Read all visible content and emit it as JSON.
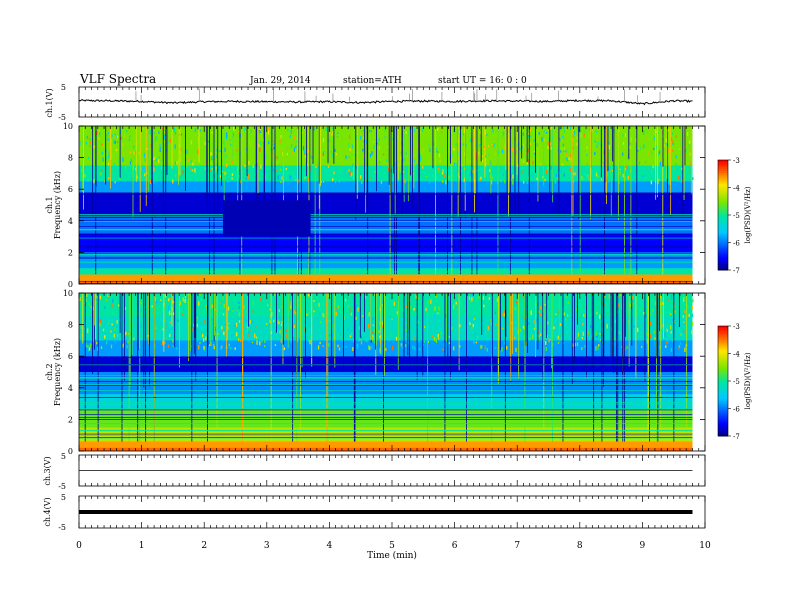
{
  "header": {
    "title": "VLF Spectra",
    "date": "Jan. 29, 2014",
    "station": "station=ATH",
    "start": "start UT =  16: 0 : 0"
  },
  "colorbar": {
    "label": "log(PSD)(V²/Hz)",
    "ticks": [
      "-3",
      "-4",
      "-5",
      "-6",
      "-7"
    ]
  },
  "colors": {
    "low": "#000080",
    "mid": "#00c8c8",
    "high": "#ff0000"
  },
  "chart_data": [
    {
      "type": "line",
      "id": "ch1-waveform",
      "ylabel": "ch.1(V)",
      "ylim": [
        -5,
        5
      ],
      "yticks": [
        "5",
        "-5"
      ],
      "x": [
        0,
        0.5,
        1,
        1.5,
        2,
        2.5,
        3,
        3.5,
        4,
        4.5,
        5,
        5.5,
        6,
        6.5,
        7,
        7.5,
        8,
        8.5,
        9,
        9.5,
        9.8
      ],
      "y": [
        0.5,
        0.4,
        0.2,
        -0.3,
        0.1,
        0.2,
        0.1,
        0.0,
        0.1,
        -0.2,
        0.2,
        0.3,
        0.2,
        0.4,
        0.3,
        0.2,
        0.5,
        0.4,
        -0.6,
        0.4,
        0.2
      ]
    },
    {
      "type": "heatmap",
      "id": "ch1-spectrogram",
      "ylabel": "ch.1\nFrequency (kHz)",
      "ylabel_lines": [
        "ch.1",
        "Frequency (kHz)"
      ],
      "ylim": [
        0,
        10
      ],
      "yticks": [
        "0",
        "2",
        "4",
        "6",
        "8",
        "10"
      ],
      "xlim": [
        0,
        10
      ],
      "data_end_min": 9.8,
      "value_range": [
        -7,
        -3
      ],
      "low_band_start_min": 2.3,
      "low_band_end_min": 3.7
    },
    {
      "type": "heatmap",
      "id": "ch2-spectrogram",
      "ylabel": "ch.2\nFrequency (kHz)",
      "ylabel_lines": [
        "ch.2",
        "Frequency (kHz)"
      ],
      "ylim": [
        0,
        10
      ],
      "yticks": [
        "0",
        "2",
        "4",
        "6",
        "8",
        "10"
      ],
      "xlim": [
        0,
        10
      ],
      "data_end_min": 9.8,
      "value_range": [
        -7,
        -3
      ]
    },
    {
      "type": "line",
      "id": "ch3-waveform",
      "ylabel": "ch.3(V)",
      "ylim": [
        -5,
        5
      ],
      "yticks": [
        "5",
        "-5"
      ],
      "x": [
        0,
        9.8
      ],
      "y": [
        0,
        0
      ]
    },
    {
      "type": "line",
      "id": "ch4-waveform",
      "ylabel": "ch.4(V)",
      "ylim": [
        -5,
        5
      ],
      "yticks": [
        "5",
        "-5"
      ],
      "x": [
        0,
        9.8
      ],
      "y": [
        0,
        0
      ]
    }
  ],
  "xaxis": {
    "label": "Time (min)",
    "ticks": [
      "0",
      "1",
      "2",
      "3",
      "4",
      "5",
      "6",
      "7",
      "8",
      "9",
      "10"
    ],
    "range": [
      0,
      10
    ]
  }
}
